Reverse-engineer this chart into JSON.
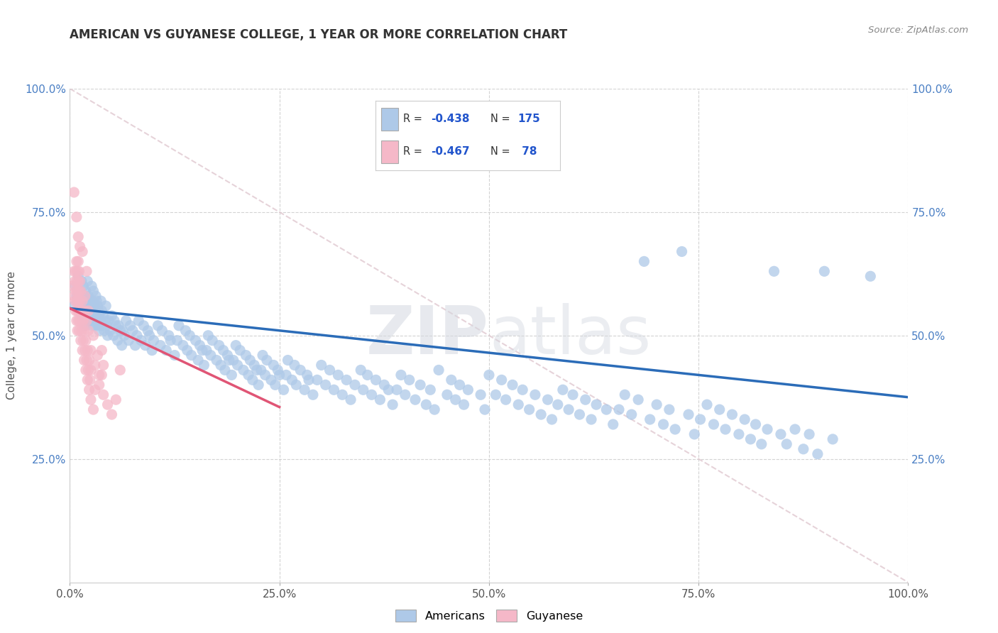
{
  "title": "AMERICAN VS GUYANESE COLLEGE, 1 YEAR OR MORE CORRELATION CHART",
  "source": "Source: ZipAtlas.com",
  "ylabel": "College, 1 year or more",
  "xlim": [
    0.0,
    1.0
  ],
  "ylim": [
    0.0,
    1.0
  ],
  "xtick_labels": [
    "0.0%",
    "25.0%",
    "50.0%",
    "75.0%",
    "100.0%"
  ],
  "xtick_positions": [
    0.0,
    0.25,
    0.5,
    0.75,
    1.0
  ],
  "ytick_labels": [
    "25.0%",
    "50.0%",
    "75.0%",
    "100.0%"
  ],
  "ytick_positions": [
    0.25,
    0.5,
    0.75,
    1.0
  ],
  "watermark_zip": "ZIP",
  "watermark_atlas": "atlas",
  "american_color": "#aec9e8",
  "guyanese_color": "#f5b8c8",
  "american_line_color": "#2b6cb8",
  "guyanese_line_color": "#e05575",
  "diagonal_line_color": "#e0c8d0",
  "R_american": -0.438,
  "N_american": 175,
  "R_guyanese": -0.467,
  "N_guyanese": 78,
  "legend_label_american": "Americans",
  "legend_label_guyanese": "Guyanese",
  "am_line_x0": 0.0,
  "am_line_y0": 0.555,
  "am_line_x1": 1.0,
  "am_line_y1": 0.375,
  "gu_line_x0": 0.0,
  "gu_line_y0": 0.555,
  "gu_line_x1": 0.25,
  "gu_line_y1": 0.355,
  "american_scatter": [
    [
      0.005,
      0.56
    ],
    [
      0.007,
      0.6
    ],
    [
      0.008,
      0.58
    ],
    [
      0.01,
      0.57
    ],
    [
      0.01,
      0.62
    ],
    [
      0.012,
      0.55
    ],
    [
      0.013,
      0.59
    ],
    [
      0.014,
      0.61
    ],
    [
      0.015,
      0.57
    ],
    [
      0.015,
      0.54
    ],
    [
      0.016,
      0.6
    ],
    [
      0.017,
      0.58
    ],
    [
      0.018,
      0.56
    ],
    [
      0.018,
      0.52
    ],
    [
      0.019,
      0.59
    ],
    [
      0.02,
      0.57
    ],
    [
      0.02,
      0.55
    ],
    [
      0.021,
      0.61
    ],
    [
      0.022,
      0.54
    ],
    [
      0.022,
      0.58
    ],
    [
      0.023,
      0.56
    ],
    [
      0.024,
      0.53
    ],
    [
      0.024,
      0.57
    ],
    [
      0.025,
      0.55
    ],
    [
      0.026,
      0.6
    ],
    [
      0.026,
      0.52
    ],
    [
      0.027,
      0.57
    ],
    [
      0.028,
      0.54
    ],
    [
      0.028,
      0.59
    ],
    [
      0.029,
      0.56
    ],
    [
      0.03,
      0.52
    ],
    [
      0.03,
      0.55
    ],
    [
      0.031,
      0.58
    ],
    [
      0.032,
      0.54
    ],
    [
      0.032,
      0.57
    ],
    [
      0.033,
      0.53
    ],
    [
      0.033,
      0.56
    ],
    [
      0.034,
      0.52
    ],
    [
      0.034,
      0.55
    ],
    [
      0.035,
      0.51
    ],
    [
      0.035,
      0.54
    ],
    [
      0.036,
      0.53
    ],
    [
      0.037,
      0.57
    ],
    [
      0.038,
      0.52
    ],
    [
      0.038,
      0.55
    ],
    [
      0.04,
      0.54
    ],
    [
      0.041,
      0.51
    ],
    [
      0.042,
      0.53
    ],
    [
      0.043,
      0.56
    ],
    [
      0.044,
      0.52
    ],
    [
      0.045,
      0.5
    ],
    [
      0.046,
      0.53
    ],
    [
      0.048,
      0.51
    ],
    [
      0.05,
      0.54
    ],
    [
      0.052,
      0.5
    ],
    [
      0.053,
      0.53
    ],
    [
      0.055,
      0.52
    ],
    [
      0.057,
      0.49
    ],
    [
      0.058,
      0.52
    ],
    [
      0.06,
      0.51
    ],
    [
      0.062,
      0.48
    ],
    [
      0.063,
      0.51
    ],
    [
      0.065,
      0.5
    ],
    [
      0.067,
      0.53
    ],
    [
      0.07,
      0.49
    ],
    [
      0.072,
      0.52
    ],
    [
      0.075,
      0.51
    ],
    [
      0.078,
      0.48
    ],
    [
      0.08,
      0.5
    ],
    [
      0.082,
      0.53
    ],
    [
      0.085,
      0.49
    ],
    [
      0.088,
      0.52
    ],
    [
      0.09,
      0.48
    ],
    [
      0.093,
      0.51
    ],
    [
      0.095,
      0.5
    ],
    [
      0.098,
      0.47
    ],
    [
      0.1,
      0.49
    ],
    [
      0.105,
      0.52
    ],
    [
      0.108,
      0.48
    ],
    [
      0.11,
      0.51
    ],
    [
      0.115,
      0.47
    ],
    [
      0.118,
      0.5
    ],
    [
      0.12,
      0.49
    ],
    [
      0.125,
      0.46
    ],
    [
      0.128,
      0.49
    ],
    [
      0.13,
      0.52
    ],
    [
      0.135,
      0.48
    ],
    [
      0.138,
      0.51
    ],
    [
      0.14,
      0.47
    ],
    [
      0.143,
      0.5
    ],
    [
      0.145,
      0.46
    ],
    [
      0.15,
      0.49
    ],
    [
      0.153,
      0.45
    ],
    [
      0.155,
      0.48
    ],
    [
      0.158,
      0.47
    ],
    [
      0.16,
      0.44
    ],
    [
      0.163,
      0.47
    ],
    [
      0.165,
      0.5
    ],
    [
      0.168,
      0.46
    ],
    [
      0.17,
      0.49
    ],
    [
      0.175,
      0.45
    ],
    [
      0.178,
      0.48
    ],
    [
      0.18,
      0.44
    ],
    [
      0.183,
      0.47
    ],
    [
      0.185,
      0.43
    ],
    [
      0.188,
      0.46
    ],
    [
      0.19,
      0.45
    ],
    [
      0.193,
      0.42
    ],
    [
      0.195,
      0.45
    ],
    [
      0.198,
      0.48
    ],
    [
      0.2,
      0.44
    ],
    [
      0.203,
      0.47
    ],
    [
      0.207,
      0.43
    ],
    [
      0.21,
      0.46
    ],
    [
      0.213,
      0.42
    ],
    [
      0.215,
      0.45
    ],
    [
      0.218,
      0.41
    ],
    [
      0.22,
      0.44
    ],
    [
      0.223,
      0.43
    ],
    [
      0.225,
      0.4
    ],
    [
      0.228,
      0.43
    ],
    [
      0.23,
      0.46
    ],
    [
      0.233,
      0.42
    ],
    [
      0.235,
      0.45
    ],
    [
      0.24,
      0.41
    ],
    [
      0.243,
      0.44
    ],
    [
      0.245,
      0.4
    ],
    [
      0.248,
      0.43
    ],
    [
      0.25,
      0.42
    ],
    [
      0.255,
      0.39
    ],
    [
      0.258,
      0.42
    ],
    [
      0.26,
      0.45
    ],
    [
      0.265,
      0.41
    ],
    [
      0.268,
      0.44
    ],
    [
      0.27,
      0.4
    ],
    [
      0.275,
      0.43
    ],
    [
      0.28,
      0.39
    ],
    [
      0.283,
      0.42
    ],
    [
      0.285,
      0.41
    ],
    [
      0.29,
      0.38
    ],
    [
      0.295,
      0.41
    ],
    [
      0.3,
      0.44
    ],
    [
      0.305,
      0.4
    ],
    [
      0.31,
      0.43
    ],
    [
      0.315,
      0.39
    ],
    [
      0.32,
      0.42
    ],
    [
      0.325,
      0.38
    ],
    [
      0.33,
      0.41
    ],
    [
      0.335,
      0.37
    ],
    [
      0.34,
      0.4
    ],
    [
      0.347,
      0.43
    ],
    [
      0.35,
      0.39
    ],
    [
      0.355,
      0.42
    ],
    [
      0.36,
      0.38
    ],
    [
      0.365,
      0.41
    ],
    [
      0.37,
      0.37
    ],
    [
      0.375,
      0.4
    ],
    [
      0.38,
      0.39
    ],
    [
      0.385,
      0.36
    ],
    [
      0.39,
      0.39
    ],
    [
      0.395,
      0.42
    ],
    [
      0.4,
      0.38
    ],
    [
      0.405,
      0.41
    ],
    [
      0.412,
      0.37
    ],
    [
      0.418,
      0.4
    ],
    [
      0.425,
      0.36
    ],
    [
      0.43,
      0.39
    ],
    [
      0.435,
      0.35
    ],
    [
      0.44,
      0.43
    ],
    [
      0.45,
      0.38
    ],
    [
      0.455,
      0.41
    ],
    [
      0.46,
      0.37
    ],
    [
      0.465,
      0.4
    ],
    [
      0.47,
      0.36
    ],
    [
      0.475,
      0.39
    ],
    [
      0.48,
      0.85
    ],
    [
      0.49,
      0.38
    ],
    [
      0.495,
      0.35
    ],
    [
      0.5,
      0.42
    ],
    [
      0.508,
      0.38
    ],
    [
      0.515,
      0.41
    ],
    [
      0.52,
      0.37
    ],
    [
      0.528,
      0.4
    ],
    [
      0.535,
      0.36
    ],
    [
      0.54,
      0.39
    ],
    [
      0.548,
      0.35
    ],
    [
      0.555,
      0.38
    ],
    [
      0.562,
      0.34
    ],
    [
      0.57,
      0.37
    ],
    [
      0.575,
      0.33
    ],
    [
      0.582,
      0.36
    ],
    [
      0.588,
      0.39
    ],
    [
      0.595,
      0.35
    ],
    [
      0.6,
      0.38
    ],
    [
      0.608,
      0.34
    ],
    [
      0.615,
      0.37
    ],
    [
      0.622,
      0.33
    ],
    [
      0.628,
      0.36
    ],
    [
      0.64,
      0.35
    ],
    [
      0.648,
      0.32
    ],
    [
      0.655,
      0.35
    ],
    [
      0.662,
      0.38
    ],
    [
      0.67,
      0.34
    ],
    [
      0.678,
      0.37
    ],
    [
      0.685,
      0.65
    ],
    [
      0.692,
      0.33
    ],
    [
      0.7,
      0.36
    ],
    [
      0.708,
      0.32
    ],
    [
      0.715,
      0.35
    ],
    [
      0.722,
      0.31
    ],
    [
      0.73,
      0.67
    ],
    [
      0.738,
      0.34
    ],
    [
      0.745,
      0.3
    ],
    [
      0.752,
      0.33
    ],
    [
      0.76,
      0.36
    ],
    [
      0.768,
      0.32
    ],
    [
      0.775,
      0.35
    ],
    [
      0.782,
      0.31
    ],
    [
      0.79,
      0.34
    ],
    [
      0.798,
      0.3
    ],
    [
      0.805,
      0.33
    ],
    [
      0.812,
      0.29
    ],
    [
      0.818,
      0.32
    ],
    [
      0.825,
      0.28
    ],
    [
      0.832,
      0.31
    ],
    [
      0.84,
      0.63
    ],
    [
      0.848,
      0.3
    ],
    [
      0.855,
      0.28
    ],
    [
      0.865,
      0.31
    ],
    [
      0.875,
      0.27
    ],
    [
      0.882,
      0.3
    ],
    [
      0.892,
      0.26
    ],
    [
      0.9,
      0.63
    ],
    [
      0.91,
      0.29
    ],
    [
      0.955,
      0.62
    ]
  ],
  "guyanese_scatter": [
    [
      0.003,
      0.6
    ],
    [
      0.005,
      0.58
    ],
    [
      0.005,
      0.63
    ],
    [
      0.006,
      0.57
    ],
    [
      0.006,
      0.61
    ],
    [
      0.007,
      0.59
    ],
    [
      0.007,
      0.55
    ],
    [
      0.007,
      0.63
    ],
    [
      0.008,
      0.57
    ],
    [
      0.008,
      0.61
    ],
    [
      0.008,
      0.53
    ],
    [
      0.008,
      0.65
    ],
    [
      0.009,
      0.59
    ],
    [
      0.009,
      0.55
    ],
    [
      0.009,
      0.63
    ],
    [
      0.009,
      0.51
    ],
    [
      0.01,
      0.57
    ],
    [
      0.01,
      0.61
    ],
    [
      0.01,
      0.53
    ],
    [
      0.01,
      0.65
    ],
    [
      0.011,
      0.59
    ],
    [
      0.011,
      0.55
    ],
    [
      0.011,
      0.63
    ],
    [
      0.011,
      0.51
    ],
    [
      0.012,
      0.57
    ],
    [
      0.012,
      0.53
    ],
    [
      0.012,
      0.61
    ],
    [
      0.013,
      0.49
    ],
    [
      0.013,
      0.55
    ],
    [
      0.013,
      0.59
    ],
    [
      0.014,
      0.51
    ],
    [
      0.014,
      0.55
    ],
    [
      0.015,
      0.47
    ],
    [
      0.015,
      0.53
    ],
    [
      0.015,
      0.57
    ],
    [
      0.016,
      0.49
    ],
    [
      0.016,
      0.53
    ],
    [
      0.017,
      0.45
    ],
    [
      0.017,
      0.51
    ],
    [
      0.018,
      0.47
    ],
    [
      0.018,
      0.55
    ],
    [
      0.019,
      0.43
    ],
    [
      0.019,
      0.49
    ],
    [
      0.02,
      0.45
    ],
    [
      0.02,
      0.53
    ],
    [
      0.021,
      0.41
    ],
    [
      0.021,
      0.47
    ],
    [
      0.022,
      0.43
    ],
    [
      0.022,
      0.51
    ],
    [
      0.023,
      0.39
    ],
    [
      0.023,
      0.45
    ],
    [
      0.024,
      0.41
    ],
    [
      0.025,
      0.37
    ],
    [
      0.025,
      0.43
    ],
    [
      0.028,
      0.35
    ],
    [
      0.03,
      0.39
    ],
    [
      0.035,
      0.42
    ],
    [
      0.038,
      0.47
    ],
    [
      0.04,
      0.38
    ],
    [
      0.005,
      0.79
    ],
    [
      0.045,
      0.36
    ],
    [
      0.05,
      0.34
    ],
    [
      0.055,
      0.37
    ],
    [
      0.06,
      0.43
    ],
    [
      0.01,
      0.7
    ],
    [
      0.015,
      0.67
    ],
    [
      0.02,
      0.63
    ],
    [
      0.008,
      0.74
    ],
    [
      0.025,
      0.47
    ],
    [
      0.03,
      0.44
    ],
    [
      0.035,
      0.4
    ],
    [
      0.04,
      0.44
    ],
    [
      0.012,
      0.68
    ],
    [
      0.018,
      0.58
    ],
    [
      0.022,
      0.55
    ],
    [
      0.028,
      0.5
    ],
    [
      0.033,
      0.46
    ],
    [
      0.038,
      0.42
    ]
  ]
}
